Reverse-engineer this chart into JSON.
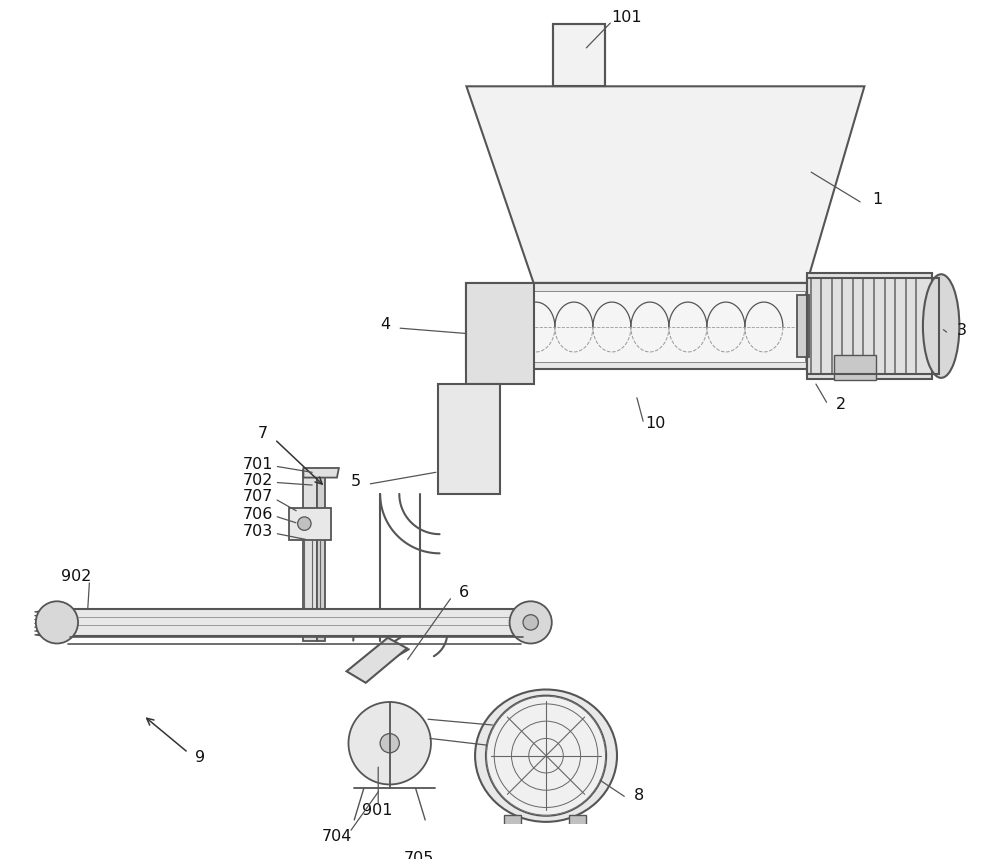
{
  "bg_color": "#ffffff",
  "line_color": "#555555",
  "line_color_dark": "#333333",
  "fig_width": 10.0,
  "fig_height": 8.59
}
